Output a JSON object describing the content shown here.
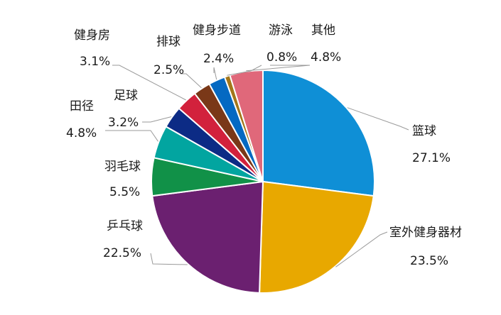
{
  "chart_data": {
    "type": "pie",
    "title": "",
    "legend": "none",
    "start_angle_deg": 0,
    "direction": "clockwise",
    "slices": [
      {
        "name": "篮球",
        "value": 27.1,
        "label": "27.1%",
        "color": "#0f8fd6"
      },
      {
        "name": "室外健身器材",
        "value": 23.5,
        "label": "23.5%",
        "color": "#e8a800"
      },
      {
        "name": "乒乓球",
        "value": 22.5,
        "label": "22.5%",
        "color": "#6b2070"
      },
      {
        "name": "羽毛球",
        "value": 5.5,
        "label": "5.5%",
        "color": "#119148"
      },
      {
        "name": "田径",
        "value": 4.8,
        "label": "4.8%",
        "color": "#02a5a0"
      },
      {
        "name": "足球",
        "value": 3.2,
        "label": "3.2%",
        "color": "#0c2b85"
      },
      {
        "name": "健身房",
        "value": 3.1,
        "label": "3.1%",
        "color": "#d2213c"
      },
      {
        "name": "排球",
        "value": 2.5,
        "label": "2.5%",
        "color": "#7a3818"
      },
      {
        "name": "健身步道",
        "value": 2.4,
        "label": "2.4%",
        "color": "#0569c2"
      },
      {
        "name": "游泳",
        "value": 0.8,
        "label": "0.8%",
        "color": "#a3761a"
      },
      {
        "name": "其他",
        "value": 4.8,
        "label": "4.8%",
        "color": "#e0687a"
      }
    ]
  }
}
